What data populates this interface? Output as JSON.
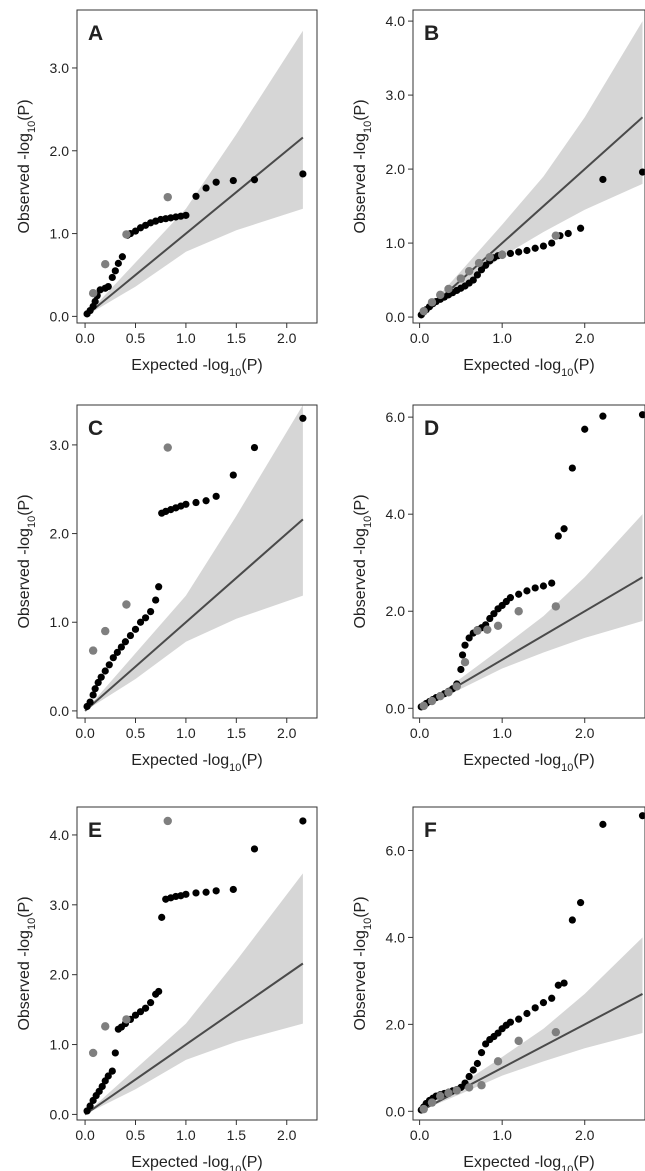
{
  "colors": {
    "band": "#d6d6d6",
    "line": "#4a4a4a",
    "point_black": "#000000",
    "point_gray": "#7f7f7f",
    "frame": "#333333"
  },
  "chart_data": [
    {
      "panel": "A",
      "type": "scatter",
      "xlabel": "Expected -log10(P)",
      "ylabel": "Observed -log10(P)",
      "xlim": [
        -0.08,
        2.3
      ],
      "ylim": [
        -0.08,
        3.7
      ],
      "xticks": [
        0.0,
        0.5,
        1.0,
        1.5,
        2.0
      ],
      "yticks": [
        0.0,
        1.0,
        2.0,
        3.0
      ],
      "diagonal_to": 2.16,
      "band": {
        "x": [
          0,
          0.5,
          1.0,
          1.5,
          2.16
        ],
        "lower": [
          0,
          0.36,
          0.78,
          1.04,
          1.3
        ],
        "upper": [
          0,
          0.65,
          1.3,
          2.2,
          3.45
        ]
      },
      "black_points": [
        [
          0.02,
          0.03
        ],
        [
          0.05,
          0.07
        ],
        [
          0.08,
          0.12
        ],
        [
          0.1,
          0.18
        ],
        [
          0.12,
          0.25
        ],
        [
          0.15,
          0.32
        ],
        [
          0.2,
          0.34
        ],
        [
          0.23,
          0.36
        ],
        [
          0.27,
          0.47
        ],
        [
          0.3,
          0.55
        ],
        [
          0.33,
          0.64
        ],
        [
          0.37,
          0.72
        ],
        [
          0.42,
          0.98
        ],
        [
          0.45,
          1.0
        ],
        [
          0.5,
          1.03
        ],
        [
          0.55,
          1.07
        ],
        [
          0.6,
          1.1
        ],
        [
          0.65,
          1.13
        ],
        [
          0.7,
          1.15
        ],
        [
          0.75,
          1.17
        ],
        [
          0.8,
          1.18
        ],
        [
          0.85,
          1.19
        ],
        [
          0.9,
          1.2
        ],
        [
          0.95,
          1.21
        ],
        [
          1.0,
          1.22
        ],
        [
          1.1,
          1.45
        ],
        [
          1.2,
          1.55
        ],
        [
          1.3,
          1.62
        ],
        [
          1.47,
          1.64
        ],
        [
          1.68,
          1.65
        ],
        [
          2.16,
          1.72
        ]
      ],
      "gray_points": [
        [
          0.08,
          0.28
        ],
        [
          0.2,
          0.63
        ],
        [
          0.41,
          0.99
        ],
        [
          0.82,
          1.44
        ]
      ]
    },
    {
      "panel": "B",
      "type": "scatter",
      "xlabel": "Expected -log10(P)",
      "ylabel": "Observed -log10(P)",
      "xlim": [
        -0.08,
        2.73
      ],
      "ylim": [
        -0.08,
        4.15
      ],
      "xticks": [
        0.0,
        1.0,
        2.0
      ],
      "yticks": [
        0.0,
        1.0,
        2.0,
        3.0,
        4.0
      ],
      "diagonal_to": 2.7,
      "band": {
        "x": [
          0,
          0.5,
          1.0,
          1.5,
          2.0,
          2.7
        ],
        "lower": [
          0,
          0.4,
          0.82,
          1.15,
          1.45,
          1.8
        ],
        "upper": [
          0,
          0.62,
          1.25,
          1.9,
          2.7,
          4.0
        ]
      },
      "black_points": [
        [
          0.02,
          0.03
        ],
        [
          0.05,
          0.07
        ],
        [
          0.08,
          0.1
        ],
        [
          0.12,
          0.14
        ],
        [
          0.16,
          0.18
        ],
        [
          0.2,
          0.21
        ],
        [
          0.25,
          0.24
        ],
        [
          0.3,
          0.27
        ],
        [
          0.35,
          0.3
        ],
        [
          0.4,
          0.33
        ],
        [
          0.45,
          0.36
        ],
        [
          0.5,
          0.39
        ],
        [
          0.55,
          0.42
        ],
        [
          0.6,
          0.46
        ],
        [
          0.65,
          0.5
        ],
        [
          0.7,
          0.57
        ],
        [
          0.75,
          0.64
        ],
        [
          0.8,
          0.7
        ],
        [
          0.85,
          0.76
        ],
        [
          0.9,
          0.8
        ],
        [
          0.95,
          0.83
        ],
        [
          1.0,
          0.85
        ],
        [
          1.1,
          0.86
        ],
        [
          1.2,
          0.88
        ],
        [
          1.3,
          0.9
        ],
        [
          1.4,
          0.93
        ],
        [
          1.5,
          0.96
        ],
        [
          1.6,
          1.0
        ],
        [
          1.7,
          1.1
        ],
        [
          1.8,
          1.13
        ],
        [
          1.95,
          1.2
        ],
        [
          2.22,
          1.86
        ],
        [
          2.7,
          1.96
        ]
      ],
      "gray_points": [
        [
          0.05,
          0.08
        ],
        [
          0.15,
          0.2
        ],
        [
          0.25,
          0.3
        ],
        [
          0.35,
          0.38
        ],
        [
          0.5,
          0.52
        ],
        [
          0.6,
          0.62
        ],
        [
          0.72,
          0.73
        ],
        [
          0.85,
          0.81
        ],
        [
          1.0,
          0.84
        ],
        [
          1.65,
          1.1
        ]
      ]
    },
    {
      "panel": "C",
      "type": "scatter",
      "xlabel": "Expected -log10(P)",
      "ylabel": "Observed -log10(P)",
      "xlim": [
        -0.08,
        2.3
      ],
      "ylim": [
        -0.08,
        3.45
      ],
      "xticks": [
        0.0,
        0.5,
        1.0,
        1.5,
        2.0
      ],
      "yticks": [
        0.0,
        1.0,
        2.0,
        3.0
      ],
      "diagonal_to": 2.16,
      "band": {
        "x": [
          0,
          0.5,
          1.0,
          1.5,
          2.16
        ],
        "lower": [
          0,
          0.36,
          0.78,
          1.04,
          1.3
        ],
        "upper": [
          0,
          0.65,
          1.3,
          2.2,
          3.45
        ]
      },
      "black_points": [
        [
          0.02,
          0.05
        ],
        [
          0.05,
          0.1
        ],
        [
          0.08,
          0.18
        ],
        [
          0.1,
          0.25
        ],
        [
          0.13,
          0.32
        ],
        [
          0.16,
          0.38
        ],
        [
          0.2,
          0.45
        ],
        [
          0.24,
          0.52
        ],
        [
          0.28,
          0.6
        ],
        [
          0.32,
          0.66
        ],
        [
          0.36,
          0.72
        ],
        [
          0.4,
          0.78
        ],
        [
          0.45,
          0.85
        ],
        [
          0.5,
          0.92
        ],
        [
          0.55,
          1.0
        ],
        [
          0.6,
          1.05
        ],
        [
          0.65,
          1.12
        ],
        [
          0.7,
          1.25
        ],
        [
          0.73,
          1.4
        ],
        [
          0.76,
          2.23
        ],
        [
          0.8,
          2.25
        ],
        [
          0.85,
          2.27
        ],
        [
          0.9,
          2.29
        ],
        [
          0.95,
          2.31
        ],
        [
          1.0,
          2.33
        ],
        [
          1.1,
          2.35
        ],
        [
          1.2,
          2.37
        ],
        [
          1.3,
          2.42
        ],
        [
          1.47,
          2.66
        ],
        [
          1.68,
          2.97
        ],
        [
          2.16,
          3.3
        ]
      ],
      "gray_points": [
        [
          0.08,
          0.68
        ],
        [
          0.2,
          0.9
        ],
        [
          0.41,
          1.2
        ],
        [
          0.82,
          2.97
        ]
      ]
    },
    {
      "panel": "D",
      "type": "scatter",
      "xlabel": "Expected -log10(P)",
      "ylabel": "Observed -log10(P)",
      "xlim": [
        -0.08,
        2.73
      ],
      "ylim": [
        -0.2,
        6.25
      ],
      "xticks": [
        0.0,
        1.0,
        2.0
      ],
      "yticks": [
        0.0,
        2.0,
        4.0,
        6.0
      ],
      "diagonal_to": 2.7,
      "band": {
        "x": [
          0,
          0.5,
          1.0,
          1.5,
          2.0,
          2.7
        ],
        "lower": [
          0,
          0.4,
          0.82,
          1.15,
          1.45,
          1.8
        ],
        "upper": [
          0,
          0.62,
          1.25,
          1.9,
          2.7,
          4.0
        ]
      },
      "black_points": [
        [
          0.02,
          0.03
        ],
        [
          0.05,
          0.06
        ],
        [
          0.08,
          0.1
        ],
        [
          0.12,
          0.14
        ],
        [
          0.16,
          0.18
        ],
        [
          0.2,
          0.22
        ],
        [
          0.25,
          0.26
        ],
        [
          0.3,
          0.3
        ],
        [
          0.35,
          0.35
        ],
        [
          0.4,
          0.4
        ],
        [
          0.45,
          0.5
        ],
        [
          0.5,
          0.8
        ],
        [
          0.52,
          1.1
        ],
        [
          0.55,
          1.3
        ],
        [
          0.6,
          1.45
        ],
        [
          0.65,
          1.55
        ],
        [
          0.7,
          1.62
        ],
        [
          0.75,
          1.66
        ],
        [
          0.8,
          1.72
        ],
        [
          0.85,
          1.85
        ],
        [
          0.9,
          1.95
        ],
        [
          0.95,
          2.05
        ],
        [
          1.0,
          2.12
        ],
        [
          1.05,
          2.2
        ],
        [
          1.1,
          2.28
        ],
        [
          1.2,
          2.35
        ],
        [
          1.3,
          2.42
        ],
        [
          1.4,
          2.48
        ],
        [
          1.5,
          2.52
        ],
        [
          1.6,
          2.58
        ],
        [
          1.68,
          3.55
        ],
        [
          1.75,
          3.7
        ],
        [
          1.85,
          4.95
        ],
        [
          2.0,
          5.75
        ],
        [
          2.22,
          6.02
        ],
        [
          2.7,
          6.05
        ]
      ],
      "gray_points": [
        [
          0.05,
          0.05
        ],
        [
          0.15,
          0.15
        ],
        [
          0.25,
          0.25
        ],
        [
          0.35,
          0.33
        ],
        [
          0.45,
          0.45
        ],
        [
          0.55,
          0.95
        ],
        [
          0.7,
          1.6
        ],
        [
          0.82,
          1.62
        ],
        [
          0.95,
          1.7
        ],
        [
          1.2,
          2.0
        ],
        [
          1.65,
          2.1
        ]
      ]
    },
    {
      "panel": "E",
      "type": "scatter",
      "xlabel": "Expected -log10(P)",
      "ylabel": "Observed -log10(P)",
      "xlim": [
        -0.08,
        2.3
      ],
      "ylim": [
        -0.08,
        4.4
      ],
      "xticks": [
        0.0,
        0.5,
        1.0,
        1.5,
        2.0
      ],
      "yticks": [
        0.0,
        1.0,
        2.0,
        3.0,
        4.0
      ],
      "diagonal_to": 2.16,
      "band": {
        "x": [
          0,
          0.5,
          1.0,
          1.5,
          2.16
        ],
        "lower": [
          0,
          0.36,
          0.78,
          1.04,
          1.3
        ],
        "upper": [
          0,
          0.65,
          1.3,
          2.2,
          3.45
        ]
      },
      "black_points": [
        [
          0.02,
          0.05
        ],
        [
          0.05,
          0.12
        ],
        [
          0.08,
          0.2
        ],
        [
          0.11,
          0.27
        ],
        [
          0.14,
          0.33
        ],
        [
          0.17,
          0.4
        ],
        [
          0.2,
          0.48
        ],
        [
          0.23,
          0.55
        ],
        [
          0.27,
          0.62
        ],
        [
          0.3,
          0.88
        ],
        [
          0.33,
          1.22
        ],
        [
          0.36,
          1.25
        ],
        [
          0.4,
          1.3
        ],
        [
          0.45,
          1.36
        ],
        [
          0.5,
          1.42
        ],
        [
          0.55,
          1.47
        ],
        [
          0.6,
          1.52
        ],
        [
          0.65,
          1.6
        ],
        [
          0.7,
          1.72
        ],
        [
          0.73,
          1.76
        ],
        [
          0.76,
          2.82
        ],
        [
          0.8,
          3.08
        ],
        [
          0.85,
          3.1
        ],
        [
          0.9,
          3.12
        ],
        [
          0.95,
          3.13
        ],
        [
          1.0,
          3.15
        ],
        [
          1.1,
          3.17
        ],
        [
          1.2,
          3.18
        ],
        [
          1.3,
          3.2
        ],
        [
          1.47,
          3.22
        ],
        [
          1.68,
          3.8
        ],
        [
          2.16,
          4.2
        ]
      ],
      "gray_points": [
        [
          0.08,
          0.88
        ],
        [
          0.2,
          1.26
        ],
        [
          0.41,
          1.36
        ],
        [
          0.82,
          4.2
        ]
      ]
    },
    {
      "panel": "F",
      "type": "scatter",
      "xlabel": "Expected -log10(P)",
      "ylabel": "Observed -log10(P)",
      "xlim": [
        -0.08,
        2.73
      ],
      "ylim": [
        -0.2,
        7.0
      ],
      "xticks": [
        0.0,
        1.0,
        2.0
      ],
      "yticks": [
        0.0,
        2.0,
        4.0,
        6.0
      ],
      "diagonal_to": 2.7,
      "band": {
        "x": [
          0,
          0.5,
          1.0,
          1.5,
          2.0,
          2.7
        ],
        "lower": [
          0,
          0.4,
          0.82,
          1.15,
          1.45,
          1.8
        ],
        "upper": [
          0,
          0.62,
          1.25,
          1.9,
          2.7,
          4.0
        ]
      },
      "black_points": [
        [
          0.02,
          0.03
        ],
        [
          0.05,
          0.1
        ],
        [
          0.08,
          0.18
        ],
        [
          0.12,
          0.25
        ],
        [
          0.16,
          0.3
        ],
        [
          0.2,
          0.35
        ],
        [
          0.25,
          0.38
        ],
        [
          0.3,
          0.41
        ],
        [
          0.35,
          0.44
        ],
        [
          0.4,
          0.47
        ],
        [
          0.45,
          0.5
        ],
        [
          0.5,
          0.55
        ],
        [
          0.55,
          0.65
        ],
        [
          0.6,
          0.8
        ],
        [
          0.65,
          0.95
        ],
        [
          0.7,
          1.1
        ],
        [
          0.75,
          1.35
        ],
        [
          0.8,
          1.55
        ],
        [
          0.85,
          1.65
        ],
        [
          0.9,
          1.72
        ],
        [
          0.95,
          1.8
        ],
        [
          1.0,
          1.9
        ],
        [
          1.05,
          1.98
        ],
        [
          1.1,
          2.05
        ],
        [
          1.2,
          2.12
        ],
        [
          1.3,
          2.25
        ],
        [
          1.4,
          2.38
        ],
        [
          1.5,
          2.5
        ],
        [
          1.6,
          2.6
        ],
        [
          1.68,
          2.9
        ],
        [
          1.75,
          2.95
        ],
        [
          1.85,
          4.4
        ],
        [
          1.95,
          4.8
        ],
        [
          2.22,
          6.6
        ],
        [
          2.7,
          6.8
        ]
      ],
      "gray_points": [
        [
          0.05,
          0.05
        ],
        [
          0.15,
          0.2
        ],
        [
          0.25,
          0.35
        ],
        [
          0.35,
          0.42
        ],
        [
          0.45,
          0.48
        ],
        [
          0.6,
          0.55
        ],
        [
          0.75,
          0.6
        ],
        [
          0.95,
          1.15
        ],
        [
          1.2,
          1.62
        ],
        [
          1.65,
          1.82
        ]
      ]
    }
  ]
}
